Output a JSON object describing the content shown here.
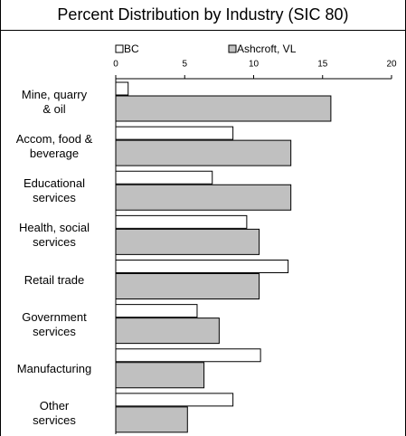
{
  "chart_data": {
    "type": "bar",
    "orientation": "horizontal",
    "title": "Percent Distribution by Industry (SIC 80)",
    "categories": [
      "Mine, quarry\n& oil",
      "Accom, food &\nbeverage",
      "Educational\nservices",
      "Health, social\nservices",
      "Retail trade",
      "Government\nservices",
      "Manufacturing",
      "Other\nservices"
    ],
    "series": [
      {
        "name": "BC",
        "color": "#ffffff",
        "values": [
          0.9,
          8.5,
          7.0,
          9.5,
          12.5,
          5.9,
          10.5,
          8.5
        ]
      },
      {
        "name": "Ashcroft, VL",
        "color": "#c0c0c0",
        "values": [
          15.6,
          12.7,
          12.7,
          10.4,
          10.4,
          7.5,
          6.4,
          5.2
        ]
      }
    ],
    "xlim": [
      0,
      20
    ],
    "xticks": [
      0,
      5,
      10,
      15,
      20
    ],
    "legend": "top"
  }
}
